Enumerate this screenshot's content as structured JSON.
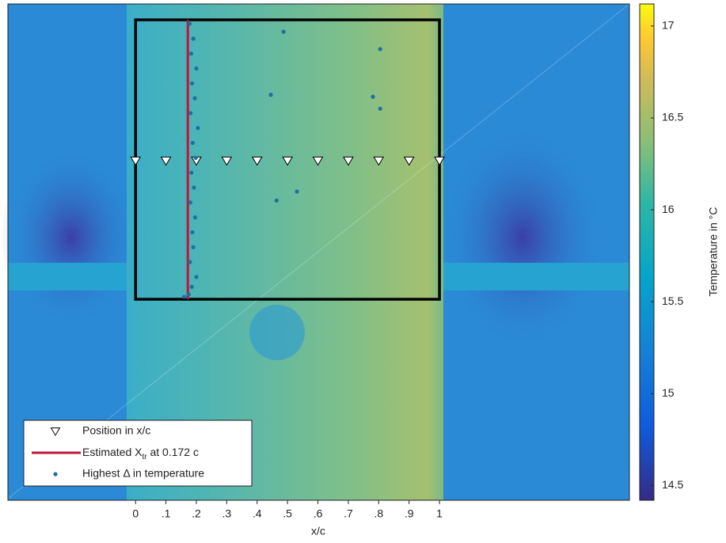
{
  "chart_data": {
    "type": "scatter",
    "xlabel": "x/c",
    "xlim": [
      -0.42,
      1.625
    ],
    "ylim": [
      0,
      1
    ],
    "xticks": [
      0,
      {
        "value": 0.1,
        "label": ".1"
      },
      {
        "value": 0.2,
        "label": ".2"
      },
      {
        "value": 0.3,
        "label": ".3"
      },
      {
        "value": 0.4,
        "label": ".4"
      },
      {
        "value": 0.5,
        "label": ".5"
      },
      {
        "value": 0.6,
        "label": ".6"
      },
      {
        "value": 0.7,
        "label": ".7"
      },
      {
        "value": 0.8,
        "label": ".8"
      },
      {
        "value": 0.9,
        "label": ".9"
      },
      1
    ],
    "frame": {
      "x": [
        0,
        1
      ],
      "y": [
        0.405,
        0.968
      ],
      "color": "#000000"
    },
    "legend": "lower left",
    "series": [
      {
        "name": "Position in x/c",
        "marker": "triangle",
        "color": "#ffffff",
        "x": [
          0,
          0.1,
          0.2,
          0.3,
          0.4,
          0.5,
          0.6,
          0.7,
          0.8,
          0.9,
          1
        ],
        "y": [
          0.684,
          0.684,
          0.684,
          0.684,
          0.684,
          0.684,
          0.684,
          0.684,
          0.684,
          0.684,
          0.684
        ]
      },
      {
        "name": {
          "text": "Estimated X",
          "subscript": "tr",
          "suffix": " at 0.172 c"
        },
        "marker": "vline",
        "color": "#c0143c",
        "x": 0.172,
        "y": [
          0.405,
          0.968
        ]
      },
      {
        "name": "Highest Δ in temperature",
        "marker": "dot",
        "color": "#1f6f9f",
        "x": [
          0.178,
          0.19,
          0.183,
          0.2,
          0.186,
          0.195,
          0.181,
          0.205,
          0.188,
          0.198,
          0.184,
          0.192,
          0.18,
          0.196,
          0.187,
          0.19,
          0.179,
          0.2,
          0.185,
          0.175,
          0.16,
          0.487,
          0.805,
          0.445,
          0.781,
          0.805,
          0.531,
          0.464
        ],
        "y": [
          0.96,
          0.93,
          0.9,
          0.87,
          0.84,
          0.81,
          0.78,
          0.75,
          0.72,
          0.69,
          0.66,
          0.63,
          0.6,
          0.57,
          0.54,
          0.51,
          0.48,
          0.45,
          0.43,
          0.415,
          0.41,
          0.944,
          0.909,
          0.817,
          0.813,
          0.789,
          0.622,
          0.604
        ]
      }
    ],
    "colorbar": {
      "label": "Temperature in °C",
      "lim": [
        14.42,
        17.12
      ],
      "ticks": [
        14.5,
        15,
        15.5,
        16,
        16.5,
        17
      ]
    }
  }
}
